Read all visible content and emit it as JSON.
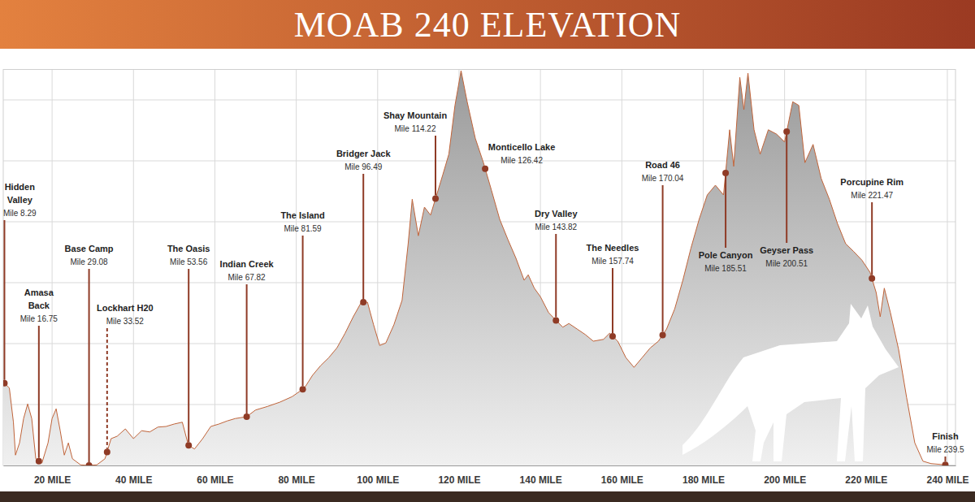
{
  "chart_data": {
    "type": "area",
    "title": "MOAB 240 ELEVATION",
    "color": "#9a9a9a",
    "x": [
      8,
      9.5,
      10.5,
      11,
      12,
      13,
      14,
      15,
      16,
      17.5,
      19,
      20,
      21,
      22,
      23,
      24,
      25,
      27,
      29,
      31,
      33,
      34.5,
      36,
      38,
      40,
      42,
      44,
      46,
      48,
      50,
      52,
      53.5,
      55,
      57,
      59,
      61,
      63,
      65,
      67.8,
      70,
      73,
      76,
      79,
      82,
      84,
      86,
      88,
      90,
      92,
      94,
      96,
      97.5,
      99,
      100.5,
      102,
      104,
      106,
      107.5,
      108.5,
      110,
      111.5,
      113,
      114.5,
      116,
      117.5,
      119,
      120.5,
      122,
      124,
      126,
      128,
      130,
      132,
      134,
      136,
      137,
      138.5,
      140,
      142,
      144,
      145.5,
      147,
      149,
      151,
      153,
      155.5,
      157,
      159,
      161,
      163,
      165,
      167,
      169,
      171,
      173,
      175,
      177,
      179,
      181,
      183,
      185,
      186.5,
      187.5,
      189,
      190,
      191,
      192.5,
      194,
      196,
      198,
      200,
      202,
      203.5,
      205,
      207,
      209,
      211,
      213,
      215,
      217,
      219,
      221,
      222.5,
      223.5,
      224.5,
      226,
      228,
      230,
      232,
      234,
      236,
      239.5
    ],
    "values": [
      5370,
      5270,
      4710,
      4170,
      4370,
      4770,
      5010,
      4770,
      4110,
      4040,
      4370,
      4770,
      4930,
      4570,
      4170,
      4370,
      4110,
      4010,
      4000,
      4010,
      4110,
      4440,
      4480,
      4600,
      4440,
      4570,
      4550,
      4630,
      4640,
      4680,
      4710,
      4330,
      4270,
      4440,
      4640,
      4680,
      4730,
      4770,
      4800,
      4910,
      4970,
      5040,
      5130,
      5270,
      5480,
      5640,
      5770,
      5930,
      6170,
      6440,
      6680,
      6680,
      6310,
      5970,
      6010,
      6310,
      6710,
      7640,
      8370,
      7770,
      8240,
      8110,
      8440,
      8770,
      9110,
      9910,
      10480,
      9970,
      9370,
      8970,
      8510,
      8040,
      7710,
      7400,
      7040,
      7130,
      6910,
      6770,
      6510,
      6370,
      6270,
      6330,
      6240,
      6150,
      6040,
      6070,
      6170,
      6040,
      5770,
      5610,
      5770,
      5930,
      6040,
      6240,
      6570,
      7040,
      7570,
      8040,
      8440,
      8600,
      8440,
      9510,
      8910,
      10370,
      9840,
      10440,
      9510,
      9110,
      9510,
      9440,
      9310,
      9970,
      9910,
      8970,
      9270,
      8710,
      8370,
      7970,
      7640,
      7510,
      7370,
      7170,
      6840,
      6440,
      6910,
      6510,
      5910,
      5110,
      4370,
      4070,
      4030,
      4010
    ],
    "xlim": [
      8,
      242
    ],
    "xticks": [
      {
        "value": 20,
        "label": "20 MILE"
      },
      {
        "value": 40,
        "label": "40 MILE"
      },
      {
        "value": 60,
        "label": "60 MILE"
      },
      {
        "value": 80,
        "label": "80 MILE"
      },
      {
        "value": 100,
        "label": "100 MILE"
      },
      {
        "value": 120,
        "label": "120 MILE"
      },
      {
        "value": 140,
        "label": "140 MILE"
      },
      {
        "value": 160,
        "label": "160 MILE"
      },
      {
        "value": 180,
        "label": "180 MILE"
      },
      {
        "value": 200,
        "label": "200 MILE"
      },
      {
        "value": 220,
        "label": "220 MILE"
      },
      {
        "value": 240,
        "label": "240 MILE"
      }
    ],
    "ylim": [
      4000,
      10500
    ],
    "yticks": [
      4000,
      5000,
      6000,
      7000,
      8000,
      9000,
      10000
    ],
    "grid": true,
    "tick_labels": "x",
    "annotations": [
      {
        "label": "Hidden Valley",
        "text": "Mile 8.29",
        "x": 8.29,
        "y": 5350
      },
      {
        "label": "Amasa Back",
        "text": "Mile 16.75",
        "x": 16.75,
        "y": 4070
      },
      {
        "label": "Base Camp",
        "text": "Mile 29.08",
        "x": 29.08,
        "y": 4000
      },
      {
        "label": "Lockhart H20",
        "text": "Mile 33.52",
        "x": 33.52,
        "y": 4220
      },
      {
        "label": "The Oasis",
        "text": "Mile 53.56",
        "x": 53.56,
        "y": 4330
      },
      {
        "label": "Indian Creek",
        "text": "Mile 67.82",
        "x": 67.82,
        "y": 4800
      },
      {
        "label": "The Island",
        "text": "Mile 81.59",
        "x": 81.59,
        "y": 5250
      },
      {
        "label": "Bridger Jack",
        "text": "Mile 96.49",
        "x": 96.49,
        "y": 6680
      },
      {
        "label": "Shay Mountain",
        "text": "Mile 114.22",
        "x": 114.22,
        "y": 8380
      },
      {
        "label": "Monticello Lake",
        "text": "Mile 126.42",
        "x": 126.42,
        "y": 8870
      },
      {
        "label": "Dry Valley",
        "text": "Mile 143.82",
        "x": 143.82,
        "y": 6380
      },
      {
        "label": "The Needles",
        "text": "Mile 157.74",
        "x": 157.74,
        "y": 6120
      },
      {
        "label": "Road 46",
        "text": "Mile 170.04",
        "x": 170.04,
        "y": 6140
      },
      {
        "label": "Pole Canyon",
        "text": "Mile 185.51",
        "x": 185.51,
        "y": 8800
      },
      {
        "label": "Geyser Pass",
        "text": "Mile 200.51",
        "x": 200.51,
        "y": 9480
      },
      {
        "label": "Porcupine Rim",
        "text": "Mile 221.47",
        "x": 221.47,
        "y": 7070
      },
      {
        "label": "Finish",
        "text": "Mile 239.5",
        "x": 239.5,
        "y": 4010
      }
    ]
  }
}
